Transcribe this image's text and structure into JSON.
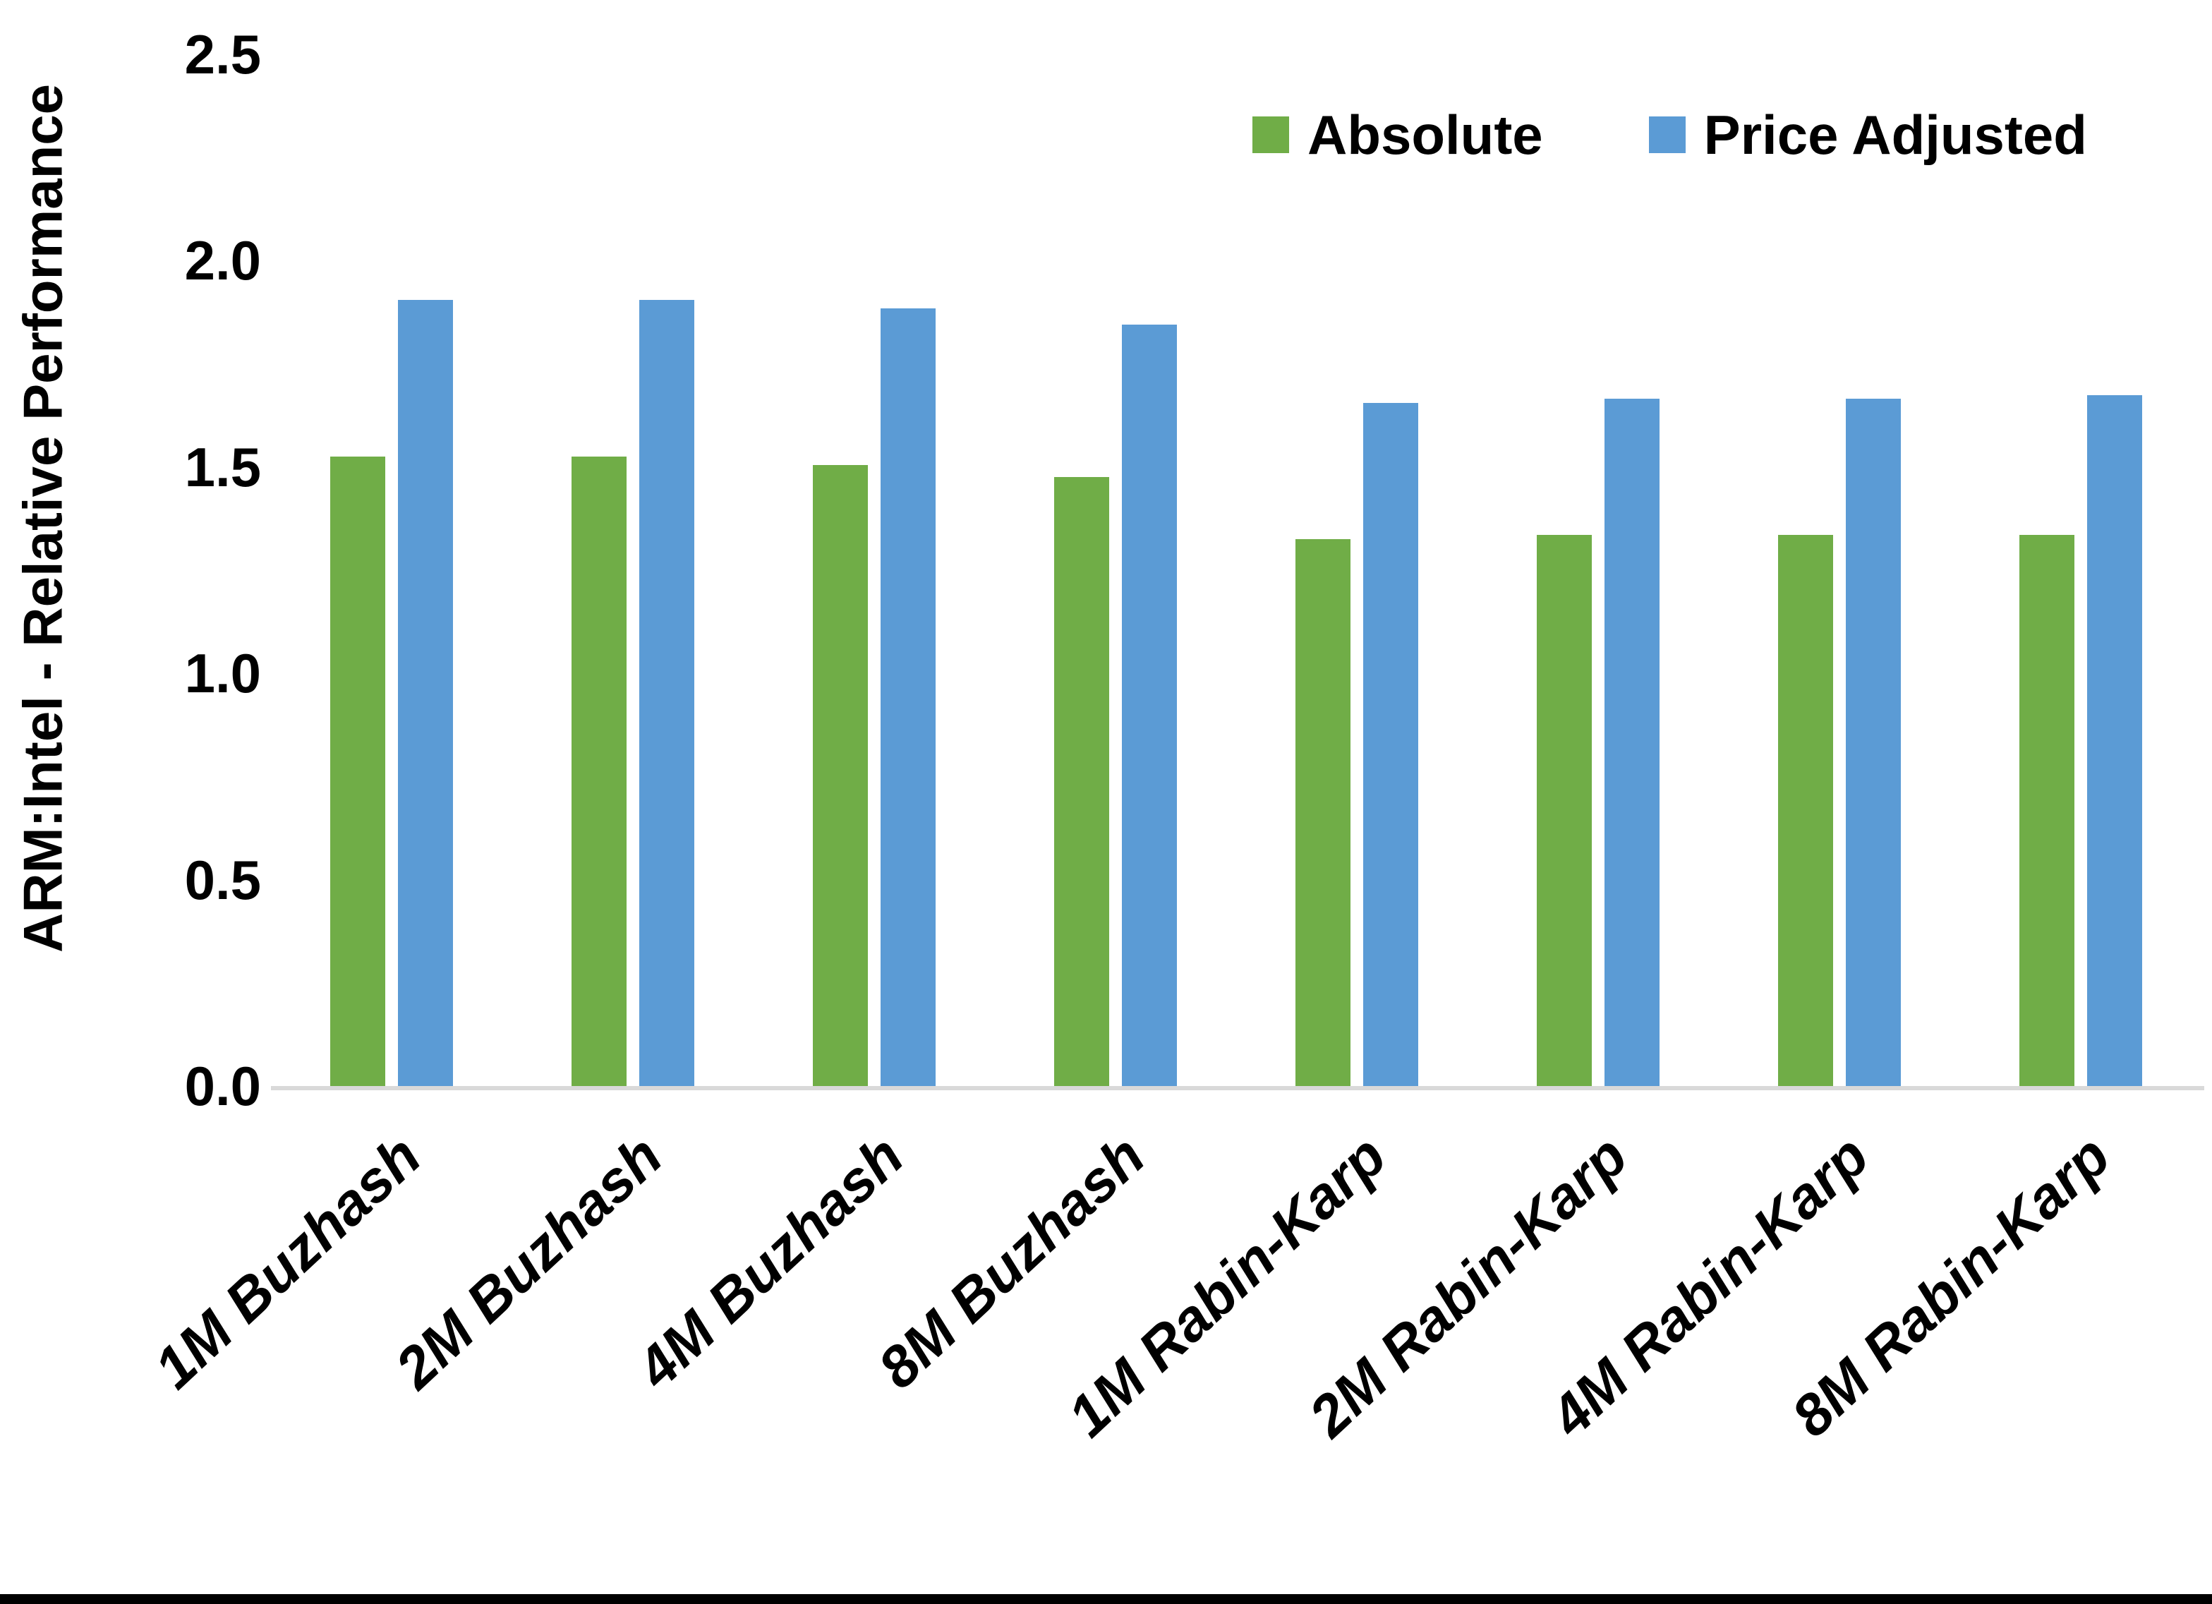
{
  "chart_data": {
    "type": "bar",
    "title": "",
    "xlabel": "",
    "ylabel": "ARM:Intel - Relative Performance",
    "ylim": [
      0,
      2.5
    ],
    "yticks": [
      "0.0",
      "0.5",
      "1.0",
      "1.5",
      "2.0",
      "2.5"
    ],
    "grid": false,
    "legend_position": "top-right",
    "background": "#FFFFFF",
    "axis_line_color": "#D9D9D9",
    "categories": [
      "1M Buzhash",
      "2M Buzhash",
      "4M Buzhash",
      "8M Buzhash",
      "1M Rabin-Karp",
      "2M Rabin-Karp",
      "4M Rabin-Karp",
      "8M Rabin-Karp"
    ],
    "series": [
      {
        "name": "Absolute",
        "color": "#70AD47",
        "values": [
          1.53,
          1.53,
          1.51,
          1.48,
          1.33,
          1.34,
          1.34,
          1.34
        ]
      },
      {
        "name": "Price Adjusted",
        "color": "#5B9BD5",
        "values": [
          1.91,
          1.91,
          1.89,
          1.85,
          1.66,
          1.67,
          1.67,
          1.68
        ]
      }
    ]
  }
}
